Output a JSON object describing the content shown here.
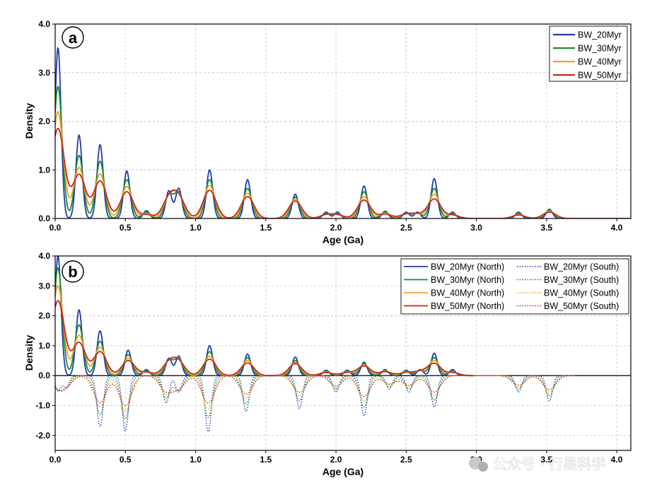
{
  "chart_data": [
    {
      "panel_label": "a",
      "type": "line",
      "xlabel": "Age (Ga)",
      "ylabel": "Density",
      "xlim": [
        0,
        4.1
      ],
      "ylim": [
        0,
        4.0
      ],
      "xticks": [
        "0.0",
        "0.5",
        "1.0",
        "1.5",
        "2.0",
        "2.5",
        "3.0",
        "3.5",
        "4.0"
      ],
      "yticks": [
        "0.0",
        "1.0",
        "2.0",
        "3.0",
        "4.0"
      ],
      "grid": true,
      "legend_position": "top-right",
      "peaks": [
        {
          "age": 0.02,
          "values": [
            3.52,
            2.72,
            2.2,
            1.85
          ]
        },
        {
          "age": 0.17,
          "values": [
            1.72,
            1.3,
            1.05,
            0.9
          ]
        },
        {
          "age": 0.32,
          "values": [
            1.52,
            1.18,
            0.92,
            0.77
          ]
        },
        {
          "age": 0.51,
          "values": [
            0.98,
            0.8,
            0.66,
            0.55
          ]
        },
        {
          "age": 0.65,
          "values": [
            0.16,
            0.13,
            0.1,
            0.08
          ]
        },
        {
          "age": 0.81,
          "values": [
            0.57,
            0.48,
            0.42,
            0.38
          ]
        },
        {
          "age": 0.88,
          "values": [
            0.62,
            0.52,
            0.45,
            0.4
          ]
        },
        {
          "age": 1.1,
          "values": [
            1.0,
            0.8,
            0.68,
            0.58
          ]
        },
        {
          "age": 1.37,
          "values": [
            0.8,
            0.62,
            0.52,
            0.45
          ]
        },
        {
          "age": 1.71,
          "values": [
            0.5,
            0.44,
            0.4,
            0.36
          ]
        },
        {
          "age": 1.93,
          "values": [
            0.13,
            0.1,
            0.08,
            0.07
          ]
        },
        {
          "age": 2.01,
          "values": [
            0.13,
            0.1,
            0.08,
            0.07
          ]
        },
        {
          "age": 2.2,
          "values": [
            0.67,
            0.55,
            0.45,
            0.38
          ]
        },
        {
          "age": 2.35,
          "values": [
            0.15,
            0.13,
            0.11,
            0.09
          ]
        },
        {
          "age": 2.5,
          "values": [
            0.13,
            0.11,
            0.09,
            0.08
          ]
        },
        {
          "age": 2.58,
          "values": [
            0.13,
            0.11,
            0.09,
            0.08
          ]
        },
        {
          "age": 2.7,
          "values": [
            0.82,
            0.62,
            0.5,
            0.4
          ]
        },
        {
          "age": 2.83,
          "values": [
            0.13,
            0.1,
            0.08,
            0.07
          ]
        },
        {
          "age": 3.3,
          "values": [
            0.13,
            0.1,
            0.08,
            0.07
          ]
        },
        {
          "age": 3.52,
          "values": [
            0.19,
            0.17,
            0.15,
            0.13
          ]
        }
      ],
      "series": [
        {
          "name": "BW_20Myr",
          "color": "#1f3ca8",
          "style": "solid"
        },
        {
          "name": "BW_30Myr",
          "color": "#1e8a2e",
          "style": "solid"
        },
        {
          "name": "BW_40Myr",
          "color": "#f0a030",
          "style": "solid"
        },
        {
          "name": "BW_50Myr",
          "color": "#c0281c",
          "style": "solid"
        }
      ]
    },
    {
      "panel_label": "b",
      "type": "line",
      "xlabel": "Age (Ga)",
      "ylabel": "Density",
      "xlim": [
        0,
        4.1
      ],
      "ylim": [
        -2.5,
        4.0
      ],
      "xticks": [
        "0.0",
        "0.5",
        "1.0",
        "1.5",
        "2.0",
        "2.5",
        "3.0",
        "3.5",
        "4.0"
      ],
      "yticks": [
        "-2.0",
        "-1.0",
        "0.0",
        "1.0",
        "2.0",
        "3.0",
        "4.0"
      ],
      "grid": true,
      "legend_position": "top-right",
      "north_peaks": [
        {
          "age": 0.02,
          "values": [
            4.0,
            3.6,
            3.0,
            2.5
          ]
        },
        {
          "age": 0.17,
          "values": [
            2.2,
            1.7,
            1.35,
            1.1
          ]
        },
        {
          "age": 0.32,
          "values": [
            1.5,
            1.15,
            0.95,
            0.8
          ]
        },
        {
          "age": 0.52,
          "values": [
            0.85,
            0.7,
            0.58,
            0.5
          ]
        },
        {
          "age": 0.65,
          "values": [
            0.2,
            0.16,
            0.13,
            0.11
          ]
        },
        {
          "age": 0.81,
          "values": [
            0.58,
            0.5,
            0.45,
            0.4
          ]
        },
        {
          "age": 0.88,
          "values": [
            0.65,
            0.55,
            0.48,
            0.42
          ]
        },
        {
          "age": 1.1,
          "values": [
            1.0,
            0.8,
            0.65,
            0.55
          ]
        },
        {
          "age": 1.37,
          "values": [
            0.72,
            0.6,
            0.5,
            0.42
          ]
        },
        {
          "age": 1.71,
          "values": [
            0.62,
            0.5,
            0.44,
            0.4
          ]
        },
        {
          "age": 1.93,
          "values": [
            0.18,
            0.15,
            0.12,
            0.1
          ]
        },
        {
          "age": 2.08,
          "values": [
            0.18,
            0.15,
            0.12,
            0.1
          ]
        },
        {
          "age": 2.2,
          "values": [
            0.45,
            0.4,
            0.36,
            0.32
          ]
        },
        {
          "age": 2.35,
          "values": [
            0.2,
            0.17,
            0.15,
            0.13
          ]
        },
        {
          "age": 2.5,
          "values": [
            0.18,
            0.15,
            0.12,
            0.1
          ]
        },
        {
          "age": 2.6,
          "values": [
            0.2,
            0.17,
            0.15,
            0.13
          ]
        },
        {
          "age": 2.7,
          "values": [
            0.75,
            0.6,
            0.5,
            0.4
          ]
        },
        {
          "age": 2.83,
          "values": [
            0.2,
            0.15,
            0.12,
            0.1
          ]
        }
      ],
      "south_peaks": [
        {
          "age": 0.02,
          "values": [
            -0.5,
            -0.45,
            -0.4,
            -0.35
          ]
        },
        {
          "age": 0.08,
          "values": [
            -0.4,
            -0.35,
            -0.3,
            -0.28
          ]
        },
        {
          "age": 0.32,
          "values": [
            -1.7,
            -1.3,
            -1.05,
            -0.9
          ]
        },
        {
          "age": 0.5,
          "values": [
            -1.85,
            -1.45,
            -1.2,
            -1.0
          ]
        },
        {
          "age": 0.79,
          "values": [
            -0.92,
            -0.75,
            -0.6,
            -0.5
          ]
        },
        {
          "age": 0.88,
          "values": [
            -0.55,
            -0.5,
            -0.45,
            -0.4
          ]
        },
        {
          "age": 1.09,
          "values": [
            -1.88,
            -1.4,
            -1.1,
            -0.92
          ]
        },
        {
          "age": 1.36,
          "values": [
            -1.2,
            -0.95,
            -0.75,
            -0.62
          ]
        },
        {
          "age": 1.74,
          "values": [
            -1.1,
            -0.85,
            -0.68,
            -0.56
          ]
        },
        {
          "age": 2.0,
          "values": [
            -0.55,
            -0.46,
            -0.4,
            -0.35
          ]
        },
        {
          "age": 2.2,
          "values": [
            -1.35,
            -1.05,
            -0.85,
            -0.7
          ]
        },
        {
          "age": 2.38,
          "values": [
            -0.45,
            -0.38,
            -0.32,
            -0.28
          ]
        },
        {
          "age": 2.52,
          "values": [
            -0.55,
            -0.45,
            -0.38,
            -0.32
          ]
        },
        {
          "age": 2.7,
          "values": [
            -1.05,
            -0.82,
            -0.66,
            -0.55
          ]
        },
        {
          "age": 3.3,
          "values": [
            -0.55,
            -0.45,
            -0.38,
            -0.32
          ]
        },
        {
          "age": 3.52,
          "values": [
            -0.85,
            -0.68,
            -0.56,
            -0.47
          ]
        }
      ],
      "series": [
        {
          "name": "BW_20Myr (North)",
          "color": "#1f3ca8",
          "style": "solid"
        },
        {
          "name": "BW_30Myr (North)",
          "color": "#1e8a2e",
          "style": "solid"
        },
        {
          "name": "BW_40Myr (North)",
          "color": "#f0a030",
          "style": "solid"
        },
        {
          "name": "BW_50Myr (North)",
          "color": "#c0281c",
          "style": "solid"
        },
        {
          "name": "BW_20Myr (South)",
          "color": "#1f3ca8",
          "style": "dotted"
        },
        {
          "name": "BW_30Myr (South)",
          "color": "#1e8a2e",
          "style": "dotted"
        },
        {
          "name": "BW_40Myr (South)",
          "color": "#f0a030",
          "style": "dotted"
        },
        {
          "name": "BW_50Myr (South)",
          "color": "#c0281c",
          "style": "dotted"
        }
      ]
    }
  ],
  "watermark": {
    "text": "公众号 · 行星科学",
    "icon": "wechat-icon"
  }
}
